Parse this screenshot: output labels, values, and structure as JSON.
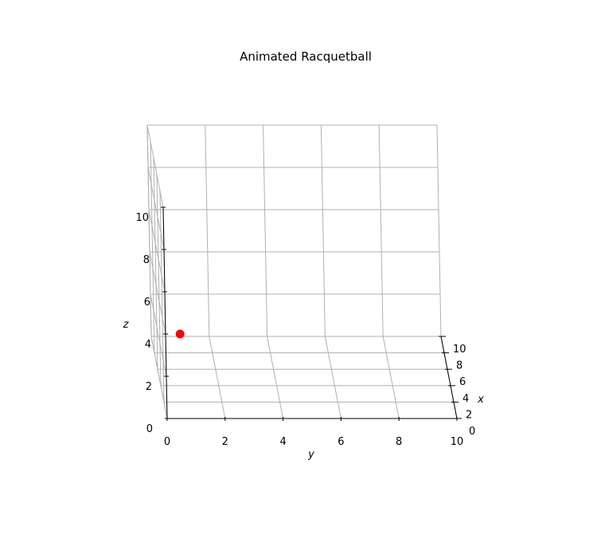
{
  "chart_data": {
    "type": "scatter",
    "projection": "3d",
    "title": "Animated Racquetball",
    "xlabel": "x",
    "ylabel": "y",
    "zlabel": "z",
    "xlim": [
      0,
      10
    ],
    "ylim": [
      0,
      10
    ],
    "zlim": [
      0,
      10
    ],
    "x_ticks": [
      "0",
      "2",
      "4",
      "6",
      "8",
      "10"
    ],
    "y_ticks": [
      "0",
      "2",
      "4",
      "6",
      "8",
      "10"
    ],
    "z_ticks": [
      "0",
      "2",
      "4",
      "6",
      "8",
      "10"
    ],
    "grid": true,
    "series": [
      {
        "color": "#ff0000",
        "points": [
          {
            "x": 0,
            "y": 0.5,
            "z": 4.0
          }
        ]
      }
    ]
  }
}
